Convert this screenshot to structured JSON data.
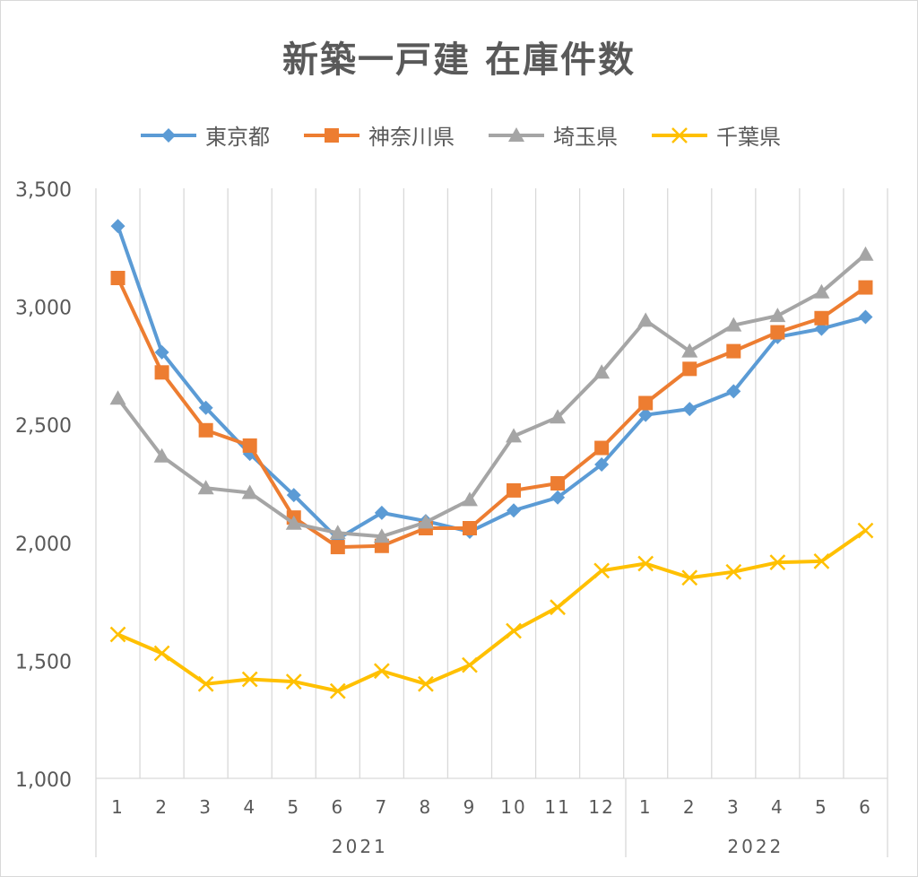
{
  "colors": {
    "tokyo": "#5B9BD5",
    "kanagawa": "#ED7D31",
    "saitama": "#A5A5A5",
    "chiba": "#FFC000",
    "grid": "#d9d9d9",
    "text": "#595959"
  },
  "chart_data": {
    "type": "line",
    "title": "新築一戸建 在庫件数",
    "legend_position": "top",
    "grid": true,
    "ylim": [
      1000,
      3500
    ],
    "yticks": [
      1000,
      1500,
      2000,
      2500,
      3000,
      3500
    ],
    "ytick_labels": [
      "1,000",
      "1,500",
      "2,000",
      "2,500",
      "3,000",
      "3,500"
    ],
    "categories": [
      "1",
      "2",
      "3",
      "4",
      "5",
      "6",
      "7",
      "8",
      "9",
      "10",
      "11",
      "12",
      "1",
      "2",
      "3",
      "4",
      "5",
      "6"
    ],
    "groups": [
      {
        "label": "2021",
        "start": 0,
        "end": 11
      },
      {
        "label": "2022",
        "start": 12,
        "end": 17
      }
    ],
    "series": [
      {
        "name": "東京都",
        "marker": "diamond",
        "values": [
          3340,
          2805,
          2570,
          2375,
          2200,
          2015,
          2125,
          2090,
          2045,
          2135,
          2190,
          2330,
          2540,
          2565,
          2640,
          2870,
          2905,
          2955
        ]
      },
      {
        "name": "神奈川県",
        "marker": "square",
        "values": [
          3120,
          2720,
          2475,
          2410,
          2105,
          1980,
          1985,
          2060,
          2060,
          2220,
          2250,
          2400,
          2590,
          2735,
          2810,
          2890,
          2950,
          3080
        ]
      },
      {
        "name": "埼玉県",
        "marker": "triangle",
        "values": [
          2610,
          2365,
          2230,
          2210,
          2080,
          2040,
          2025,
          2085,
          2180,
          2450,
          2530,
          2720,
          2940,
          2810,
          2920,
          2960,
          3060,
          3220
        ]
      },
      {
        "name": "千葉県",
        "marker": "x",
        "values": [
          1610,
          1530,
          1400,
          1420,
          1410,
          1370,
          1455,
          1400,
          1480,
          1625,
          1725,
          1880,
          1910,
          1850,
          1875,
          1915,
          1920,
          2050
        ]
      }
    ]
  }
}
